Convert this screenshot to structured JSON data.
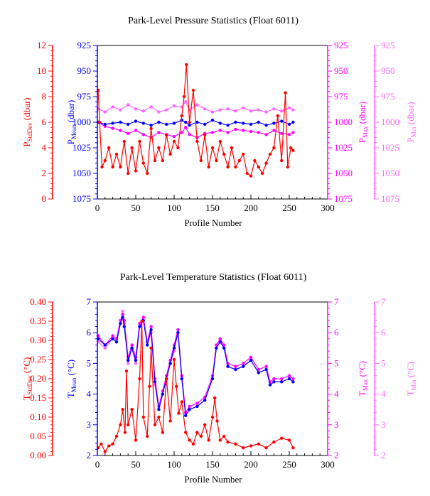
{
  "colors": {
    "stddev": "#ff0000",
    "mean": "#0000ff",
    "max": "#ff00ff",
    "min": "#ff66ff",
    "frame": "#000000"
  },
  "chart_data": [
    {
      "type": "line",
      "title": "Park-Level Pressure Statistics (Float 6011)",
      "xlabel": "Profile Number",
      "xlim": [
        0,
        300
      ],
      "xticks": [
        "0",
        "50",
        "100",
        "150",
        "200",
        "250",
        "300"
      ],
      "axes": {
        "stddev": {
          "label_main": "P",
          "label_sub": "StdDev",
          "label_unit": " (dbar)",
          "range": [
            0,
            12
          ],
          "ticks": [
            "0",
            "2",
            "4",
            "6",
            "8",
            "10",
            "12"
          ],
          "inverted": false
        },
        "mean": {
          "label_main": "P",
          "label_sub": "Mean",
          "label_unit": " (dbar)",
          "range": [
            1075,
            925
          ],
          "ticks": [
            "925",
            "950",
            "975",
            "1000",
            "1025",
            "1050",
            "1075"
          ],
          "inverted": true
        },
        "max": {
          "label_main": "P",
          "label_sub": "Max",
          "label_unit": " (dbar)",
          "range": [
            1075,
            925
          ],
          "ticks": [
            "925",
            "950",
            "975",
            "1000",
            "1025",
            "1050",
            "1075"
          ],
          "inverted": true
        },
        "min": {
          "label_main": "P",
          "label_sub": "Min",
          "label_unit": " (dbar)",
          "range": [
            1075,
            925
          ],
          "ticks": [
            "925",
            "950",
            "975",
            "1000",
            "1025",
            "1050",
            "1075"
          ],
          "inverted": true
        }
      },
      "series": [
        {
          "key": "min",
          "x": [
            1,
            10,
            20,
            30,
            40,
            50,
            60,
            70,
            80,
            90,
            100,
            110,
            115,
            120,
            130,
            140,
            150,
            160,
            170,
            180,
            190,
            200,
            210,
            220,
            230,
            240,
            250,
            255
          ],
          "values": [
            987,
            990,
            985,
            988,
            983,
            987,
            989,
            985,
            990,
            988,
            984,
            985,
            980,
            988,
            983,
            987,
            990,
            988,
            987,
            989,
            986,
            989,
            988,
            990,
            987,
            989,
            986,
            988
          ]
        },
        {
          "key": "max",
          "x": [
            1,
            10,
            20,
            30,
            40,
            50,
            60,
            70,
            80,
            90,
            100,
            110,
            115,
            120,
            130,
            140,
            150,
            160,
            170,
            180,
            190,
            200,
            210,
            220,
            230,
            240,
            250,
            255
          ],
          "values": [
            1000,
            1004,
            1006,
            1008,
            1011,
            1008,
            1012,
            1015,
            1010,
            1012,
            1014,
            1010,
            1005,
            1012,
            1015,
            1011,
            1010,
            1008,
            1010,
            1007,
            1008,
            1009,
            1010,
            1012,
            1008,
            1011,
            1012,
            1010
          ]
        },
        {
          "key": "mean",
          "x": [
            1,
            10,
            20,
            30,
            40,
            50,
            60,
            70,
            80,
            90,
            100,
            110,
            115,
            120,
            130,
            140,
            150,
            160,
            170,
            180,
            190,
            200,
            210,
            220,
            230,
            240,
            250,
            255
          ],
          "values": [
            1000,
            1002,
            1001,
            1000,
            1002,
            999,
            1001,
            1003,
            1000,
            1002,
            1001,
            998,
            1000,
            1003,
            1000,
            1002,
            998,
            1001,
            1003,
            1000,
            1001,
            1002,
            1000,
            1003,
            1001,
            999,
            1002,
            1000
          ]
        },
        {
          "key": "stddev",
          "x": [
            1,
            3,
            6,
            10,
            15,
            20,
            25,
            30,
            35,
            40,
            45,
            50,
            55,
            60,
            65,
            70,
            75,
            80,
            85,
            90,
            95,
            100,
            105,
            110,
            113,
            116,
            120,
            125,
            130,
            135,
            140,
            145,
            150,
            155,
            160,
            165,
            170,
            175,
            180,
            185,
            190,
            195,
            200,
            205,
            210,
            215,
            220,
            225,
            230,
            235,
            240,
            245,
            248,
            252,
            255
          ],
          "values": [
            8.5,
            6.0,
            2.5,
            3.0,
            4.0,
            2.5,
            3.5,
            2.5,
            4.5,
            2.0,
            4.0,
            2.2,
            4.5,
            2.8,
            2.0,
            5.5,
            3.0,
            4.0,
            3.0,
            5.0,
            3.5,
            4.5,
            4.0,
            6.5,
            8.0,
            10.5,
            6.0,
            8.5,
            4.5,
            3.0,
            5.0,
            2.5,
            4.0,
            3.0,
            4.5,
            3.5,
            2.5,
            4.0,
            2.5,
            3.0,
            3.5,
            2.0,
            1.8,
            3.0,
            2.5,
            2.0,
            2.8,
            3.5,
            4.0,
            6.5,
            3.0,
            8.3,
            2.5,
            4.0,
            3.8
          ]
        }
      ]
    },
    {
      "type": "line",
      "title": "Park-Level Temperature Statistics (Float 6011)",
      "xlabel": "Profile Number",
      "xlim": [
        0,
        300
      ],
      "xticks": [
        "0",
        "50",
        "100",
        "150",
        "200",
        "250",
        "300"
      ],
      "axes": {
        "stddev": {
          "label_main": "T",
          "label_sub": "StdDev",
          "label_unit": " (°C)",
          "range": [
            0,
            0.4
          ],
          "ticks": [
            "0.00",
            "0.05",
            "0.10",
            "0.15",
            "0.20",
            "0.25",
            "0.30",
            "0.35",
            "0.40"
          ],
          "inverted": false
        },
        "mean": {
          "label_main": "T",
          "label_sub": "Mean",
          "label_unit": " (°C)",
          "range": [
            2,
            7
          ],
          "ticks": [
            "2",
            "3",
            "4",
            "5",
            "6",
            "7"
          ],
          "inverted": false
        },
        "max": {
          "label_main": "T",
          "label_sub": "Max",
          "label_unit": " (°C)",
          "range": [
            2,
            7
          ],
          "ticks": [
            "2",
            "3",
            "4",
            "5",
            "6",
            "7"
          ],
          "inverted": false
        },
        "min": {
          "label_main": "T",
          "label_sub": "Min",
          "label_unit": " (°C)",
          "range": [
            2,
            7
          ],
          "ticks": [
            "2",
            "3",
            "4",
            "5",
            "6",
            "7"
          ],
          "inverted": false
        }
      },
      "series": [
        {
          "key": "min",
          "x": [
            1,
            10,
            20,
            25,
            30,
            33,
            35,
            40,
            45,
            50,
            55,
            60,
            65,
            70,
            75,
            80,
            85,
            90,
            95,
            100,
            105,
            110,
            115,
            120,
            130,
            140,
            150,
            155,
            160,
            165,
            170,
            180,
            190,
            200,
            210,
            220,
            225,
            230,
            240,
            250,
            255
          ],
          "values": [
            5.7,
            5.5,
            5.8,
            5.7,
            6.3,
            6.7,
            6.3,
            5.0,
            5.5,
            5.0,
            6.2,
            6.5,
            5.6,
            6.0,
            4.3,
            3.5,
            4.0,
            4.5,
            5.0,
            5.4,
            6.0,
            4.5,
            3.3,
            3.5,
            3.6,
            3.8,
            4.5,
            5.5,
            5.8,
            5.5,
            4.9,
            4.8,
            4.9,
            5.1,
            4.7,
            4.8,
            4.3,
            4.4,
            4.4,
            4.5,
            4.4
          ]
        },
        {
          "key": "max",
          "x": [
            1,
            10,
            20,
            25,
            30,
            33,
            35,
            40,
            45,
            50,
            55,
            60,
            65,
            70,
            75,
            80,
            85,
            90,
            95,
            100,
            105,
            110,
            115,
            120,
            130,
            140,
            150,
            155,
            160,
            165,
            170,
            180,
            190,
            200,
            210,
            220,
            225,
            230,
            240,
            250,
            255
          ],
          "values": [
            5.9,
            5.6,
            5.9,
            5.8,
            6.4,
            6.6,
            6.4,
            5.2,
            5.6,
            5.2,
            6.3,
            6.5,
            5.7,
            6.2,
            4.5,
            3.6,
            4.1,
            4.6,
            5.1,
            5.6,
            6.1,
            4.6,
            3.4,
            3.6,
            3.7,
            3.9,
            4.6,
            5.6,
            5.8,
            5.6,
            5.0,
            4.9,
            5.0,
            5.2,
            4.8,
            4.9,
            4.4,
            4.5,
            4.5,
            4.6,
            4.5
          ]
        },
        {
          "key": "mean",
          "x": [
            1,
            10,
            20,
            25,
            30,
            33,
            35,
            40,
            45,
            50,
            55,
            60,
            65,
            70,
            75,
            80,
            85,
            90,
            95,
            100,
            105,
            110,
            115,
            120,
            130,
            140,
            150,
            155,
            160,
            165,
            170,
            180,
            190,
            200,
            210,
            220,
            225,
            230,
            240,
            250,
            255
          ],
          "values": [
            5.8,
            5.6,
            5.8,
            5.7,
            6.3,
            6.5,
            6.2,
            5.1,
            5.5,
            5.1,
            6.2,
            6.4,
            5.6,
            6.1,
            4.4,
            3.5,
            4.0,
            4.5,
            5.0,
            5.5,
            6.0,
            4.5,
            3.3,
            3.5,
            3.6,
            3.8,
            4.5,
            5.5,
            5.7,
            5.5,
            4.9,
            4.8,
            4.9,
            5.1,
            4.7,
            4.8,
            4.3,
            4.4,
            4.4,
            4.5,
            4.4
          ]
        },
        {
          "key": "stddev",
          "x": [
            1,
            5,
            10,
            15,
            20,
            25,
            30,
            33,
            36,
            38,
            40,
            45,
            50,
            55,
            58,
            60,
            65,
            68,
            70,
            75,
            80,
            85,
            90,
            95,
            100,
            103,
            106,
            110,
            115,
            120,
            125,
            130,
            135,
            140,
            145,
            150,
            153,
            156,
            160,
            165,
            170,
            180,
            190,
            200,
            210,
            220,
            230,
            240,
            250,
            255
          ],
          "values": [
            0.02,
            0.03,
            0.01,
            0.025,
            0.03,
            0.05,
            0.08,
            0.12,
            0.06,
            0.22,
            0.08,
            0.12,
            0.04,
            0.2,
            0.35,
            0.1,
            0.05,
            0.18,
            0.28,
            0.08,
            0.1,
            0.06,
            0.2,
            0.09,
            0.25,
            0.18,
            0.11,
            0.14,
            0.06,
            0.04,
            0.03,
            0.06,
            0.05,
            0.08,
            0.04,
            0.1,
            0.15,
            0.09,
            0.04,
            0.05,
            0.035,
            0.03,
            0.02,
            0.025,
            0.03,
            0.02,
            0.035,
            0.045,
            0.04,
            0.02
          ]
        }
      ]
    }
  ]
}
